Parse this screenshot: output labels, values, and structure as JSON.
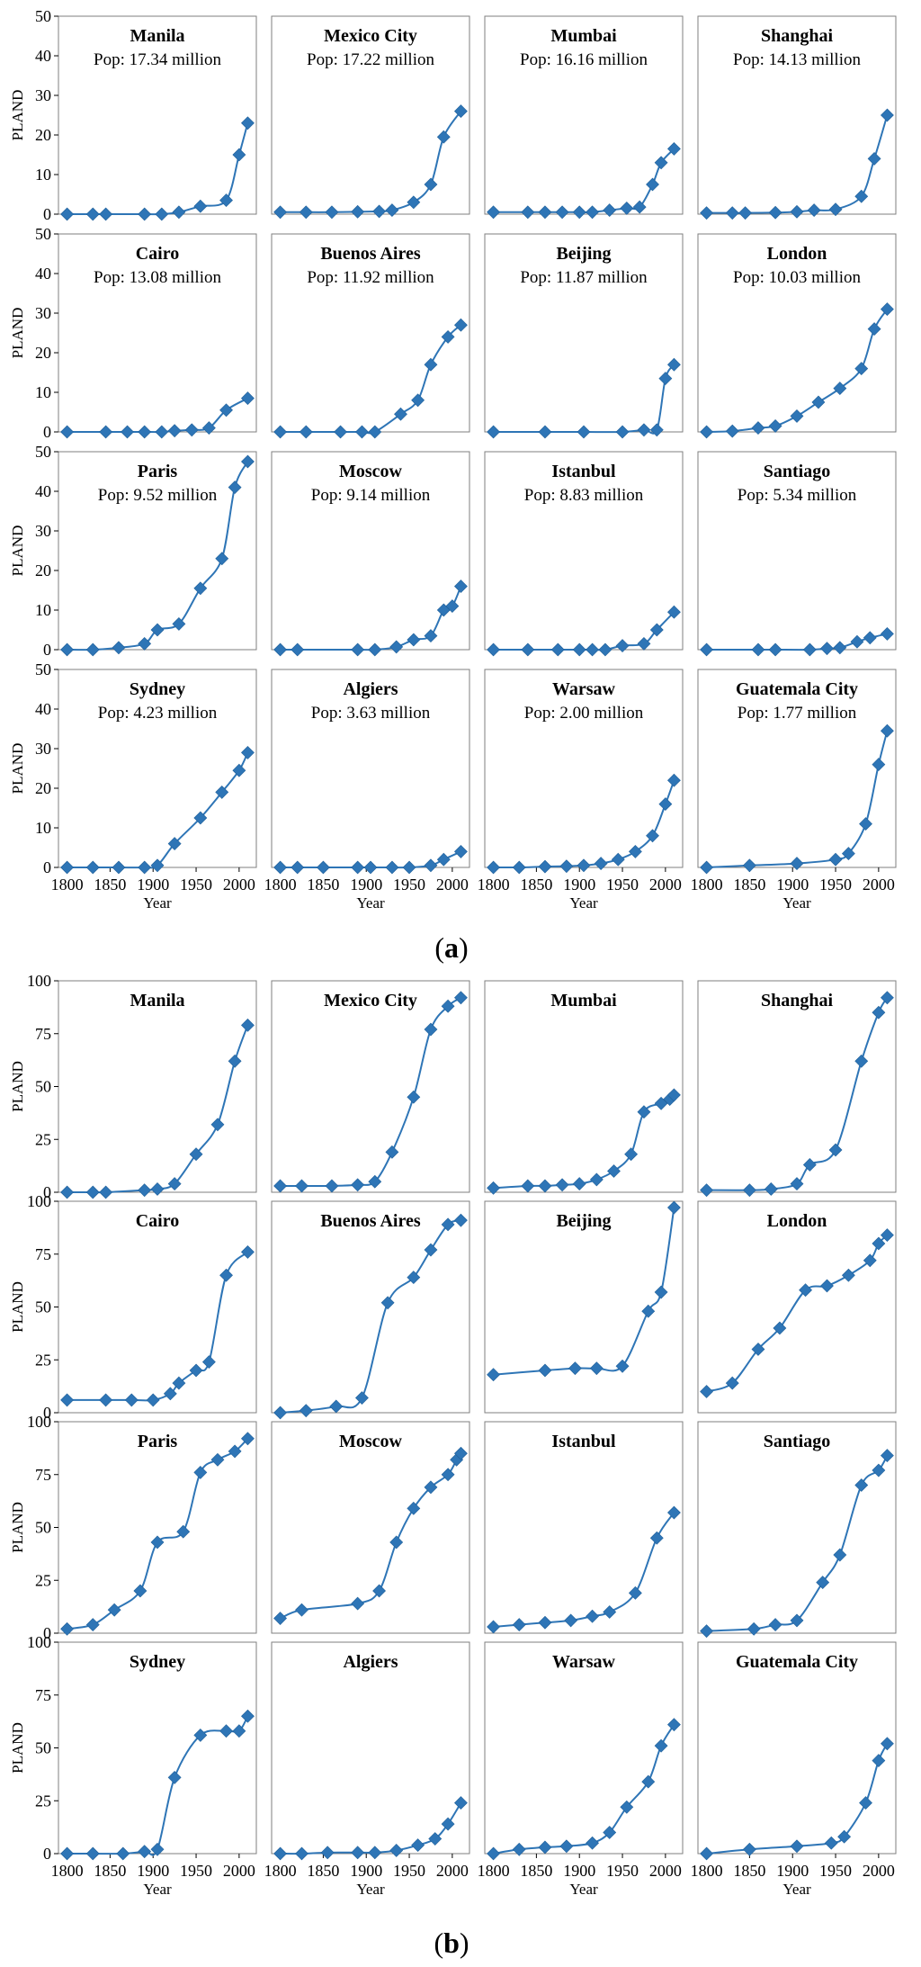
{
  "figure": {
    "xlabel": "Year",
    "ylabel": "PLAND",
    "x_ticks": [
      "1800",
      "1850",
      "1900",
      "1950",
      "2000"
    ],
    "marker_color": "#2E75B6",
    "line_color": "#2E75B6",
    "marker": "diamond"
  },
  "chart_data": [
    {
      "id": "a",
      "label": "a",
      "type": "line",
      "ylabel": "PLAND",
      "xlabel": "Year",
      "xlim": [
        1790,
        2020
      ],
      "ylim": [
        0,
        50
      ],
      "y_ticks": [
        0,
        10,
        20,
        30,
        40,
        50
      ],
      "x_ticks": [
        1800,
        1850,
        1900,
        1950,
        2000
      ],
      "grid": false,
      "panels": [
        {
          "city": "Manila",
          "pop": "Pop: 17.34 million",
          "x": [
            1800,
            1830,
            1845,
            1890,
            1910,
            1930,
            1955,
            1985,
            2000,
            2010
          ],
          "y": [
            0,
            0,
            0,
            0,
            0,
            0.5,
            2,
            3.5,
            15,
            23
          ]
        },
        {
          "city": "Mexico City",
          "pop": "Pop: 17.22 million",
          "x": [
            1800,
            1830,
            1860,
            1890,
            1915,
            1930,
            1955,
            1975,
            1990,
            2010
          ],
          "y": [
            0.5,
            0.5,
            0.5,
            0.6,
            0.7,
            1,
            3,
            7.5,
            19.5,
            26
          ]
        },
        {
          "city": "Mumbai",
          "pop": "Pop: 16.16 million",
          "x": [
            1800,
            1840,
            1860,
            1880,
            1900,
            1915,
            1935,
            1955,
            1970,
            1985,
            1995,
            2010
          ],
          "y": [
            0.5,
            0.5,
            0.5,
            0.5,
            0.5,
            0.5,
            1,
            1.5,
            1.8,
            7.5,
            13,
            16.5
          ]
        },
        {
          "city": "Shanghai",
          "pop": "Pop: 14.13 million",
          "x": [
            1800,
            1830,
            1845,
            1880,
            1905,
            1925,
            1950,
            1980,
            1995,
            2010
          ],
          "y": [
            0.3,
            0.3,
            0.3,
            0.4,
            0.6,
            1,
            1.2,
            4.5,
            14,
            25
          ]
        },
        {
          "city": "Cairo",
          "pop": "Pop: 13.08 million",
          "x": [
            1800,
            1845,
            1870,
            1890,
            1910,
            1925,
            1945,
            1965,
            1985,
            2010
          ],
          "y": [
            0,
            0,
            0,
            0,
            0,
            0.3,
            0.5,
            1,
            5.5,
            8.5
          ]
        },
        {
          "city": "Buenos Aires",
          "pop": "Pop: 11.92 million",
          "x": [
            1800,
            1830,
            1870,
            1895,
            1910,
            1940,
            1960,
            1975,
            1995,
            2010
          ],
          "y": [
            0,
            0,
            0,
            0,
            0,
            4.5,
            8,
            17,
            24,
            27
          ]
        },
        {
          "city": "Beijing",
          "pop": "Pop: 11.87 million",
          "x": [
            1800,
            1860,
            1905,
            1950,
            1975,
            1990,
            2000,
            2010
          ],
          "y": [
            0,
            0,
            0,
            0,
            0.5,
            0.5,
            13.5,
            17
          ]
        },
        {
          "city": "London",
          "pop": "Pop: 10.03 million",
          "x": [
            1800,
            1830,
            1860,
            1880,
            1905,
            1930,
            1955,
            1980,
            1995,
            2010
          ],
          "y": [
            0,
            0.2,
            1,
            1.5,
            4,
            7.5,
            11,
            16,
            26,
            31
          ]
        },
        {
          "city": "Paris",
          "pop": "Pop: 9.52 million",
          "x": [
            1800,
            1830,
            1860,
            1890,
            1905,
            1930,
            1955,
            1980,
            1995,
            2010
          ],
          "y": [
            0,
            0,
            0.5,
            1.5,
            5,
            6.5,
            15.5,
            23,
            41,
            47.5
          ]
        },
        {
          "city": "Moscow",
          "pop": "Pop: 9.14 million",
          "x": [
            1800,
            1820,
            1890,
            1910,
            1935,
            1955,
            1975,
            1990,
            2000,
            2010
          ],
          "y": [
            0,
            0,
            0,
            0,
            0.7,
            2.5,
            3.5,
            10,
            11,
            16
          ]
        },
        {
          "city": "Istanbul",
          "pop": "Pop: 8.83 million",
          "x": [
            1800,
            1840,
            1875,
            1900,
            1915,
            1930,
            1950,
            1975,
            1990,
            2010
          ],
          "y": [
            0,
            0,
            0,
            0,
            0,
            0,
            1,
            1.5,
            5,
            9.5
          ]
        },
        {
          "city": "Santiago",
          "pop": "Pop: 5.34 million",
          "x": [
            1800,
            1860,
            1880,
            1920,
            1940,
            1955,
            1975,
            1990,
            2010
          ],
          "y": [
            0,
            0,
            0,
            0,
            0.3,
            0.5,
            2,
            3,
            4
          ]
        },
        {
          "city": "Sydney",
          "pop": "Pop: 4.23 million",
          "x": [
            1800,
            1830,
            1860,
            1890,
            1905,
            1925,
            1955,
            1980,
            2000,
            2010
          ],
          "y": [
            0,
            0,
            0,
            0,
            0.5,
            6,
            12.5,
            19,
            24.5,
            29
          ]
        },
        {
          "city": "Algiers",
          "pop": "Pop: 3.63 million",
          "x": [
            1800,
            1820,
            1850,
            1890,
            1905,
            1930,
            1950,
            1975,
            1990,
            2010
          ],
          "y": [
            0,
            0,
            0,
            0,
            0,
            0,
            0,
            0.5,
            2,
            4
          ]
        },
        {
          "city": "Warsaw",
          "pop": "Pop: 2.00 million",
          "x": [
            1800,
            1830,
            1860,
            1885,
            1905,
            1925,
            1945,
            1965,
            1985,
            2000,
            2010
          ],
          "y": [
            0,
            0,
            0.2,
            0.3,
            0.5,
            1,
            2,
            4,
            8,
            16,
            22
          ]
        },
        {
          "city": "Guatemala City",
          "pop": "Pop: 1.77 million",
          "x": [
            1800,
            1850,
            1905,
            1950,
            1965,
            1985,
            2000,
            2010
          ],
          "y": [
            0,
            0.5,
            1,
            2,
            3.5,
            11,
            26,
            34.5
          ]
        }
      ]
    },
    {
      "id": "b",
      "label": "b",
      "type": "line",
      "ylabel": "PLAND",
      "xlabel": "Year",
      "xlim": [
        1790,
        2020
      ],
      "ylim": [
        0,
        100
      ],
      "y_ticks": [
        0,
        25,
        50,
        75,
        100
      ],
      "x_ticks": [
        1800,
        1850,
        1900,
        1950,
        2000
      ],
      "grid": false,
      "panels": [
        {
          "city": "Manila",
          "x": [
            1800,
            1830,
            1845,
            1890,
            1905,
            1925,
            1950,
            1975,
            1995,
            2010
          ],
          "y": [
            0,
            0,
            0,
            1,
            1.5,
            4,
            18,
            32,
            62,
            79
          ]
        },
        {
          "city": "Mexico City",
          "x": [
            1800,
            1825,
            1860,
            1890,
            1910,
            1930,
            1955,
            1975,
            1995,
            2010
          ],
          "y": [
            3,
            3,
            3,
            3.5,
            5,
            19,
            45,
            77,
            88,
            92
          ]
        },
        {
          "city": "Mumbai",
          "x": [
            1800,
            1840,
            1860,
            1880,
            1900,
            1920,
            1940,
            1960,
            1975,
            1995,
            2005,
            2010
          ],
          "y": [
            2,
            3,
            3,
            3.5,
            4,
            6,
            10,
            18,
            38,
            42,
            44,
            46
          ]
        },
        {
          "city": "Shanghai",
          "x": [
            1800,
            1850,
            1875,
            1905,
            1920,
            1950,
            1980,
            2000,
            2010
          ],
          "y": [
            1,
            1,
            1.5,
            4,
            13,
            20,
            62,
            85,
            92
          ]
        },
        {
          "city": "Cairo",
          "x": [
            1800,
            1845,
            1875,
            1900,
            1920,
            1930,
            1950,
            1965,
            1985,
            2010
          ],
          "y": [
            6,
            6,
            6,
            6,
            9,
            14,
            20,
            24,
            65,
            76
          ]
        },
        {
          "city": "Buenos Aires",
          "x": [
            1800,
            1830,
            1865,
            1895,
            1925,
            1955,
            1975,
            1995,
            2010
          ],
          "y": [
            0,
            1,
            3,
            7,
            52,
            64,
            77,
            89,
            91
          ]
        },
        {
          "city": "Beijing",
          "x": [
            1800,
            1860,
            1895,
            1920,
            1950,
            1980,
            1995,
            2010
          ],
          "y": [
            18,
            20,
            21,
            21,
            22,
            48,
            57,
            97
          ]
        },
        {
          "city": "London",
          "x": [
            1800,
            1830,
            1860,
            1885,
            1915,
            1940,
            1965,
            1990,
            2000,
            2010
          ],
          "y": [
            10,
            14,
            30,
            40,
            58,
            60,
            65,
            72,
            80,
            84
          ]
        },
        {
          "city": "Paris",
          "x": [
            1800,
            1830,
            1855,
            1885,
            1905,
            1935,
            1955,
            1975,
            1995,
            2010
          ],
          "y": [
            2,
            4,
            11,
            20,
            43,
            48,
            76,
            82,
            86,
            92
          ]
        },
        {
          "city": "Moscow",
          "x": [
            1800,
            1825,
            1890,
            1915,
            1935,
            1955,
            1975,
            1995,
            2005,
            2010
          ],
          "y": [
            7,
            11,
            14,
            20,
            43,
            59,
            69,
            75,
            82,
            85
          ]
        },
        {
          "city": "Istanbul",
          "x": [
            1800,
            1830,
            1860,
            1890,
            1915,
            1935,
            1965,
            1990,
            2010
          ],
          "y": [
            3,
            4,
            5,
            6,
            8,
            10,
            19,
            45,
            57
          ]
        },
        {
          "city": "Santiago",
          "x": [
            1800,
            1855,
            1880,
            1905,
            1935,
            1955,
            1980,
            2000,
            2010
          ],
          "y": [
            1,
            2,
            4,
            6,
            24,
            37,
            70,
            77,
            84
          ]
        },
        {
          "city": "Sydney",
          "x": [
            1800,
            1830,
            1865,
            1890,
            1905,
            1925,
            1955,
            1985,
            2000,
            2010
          ],
          "y": [
            0,
            0,
            0,
            1,
            2,
            36,
            56,
            58,
            58,
            65
          ]
        },
        {
          "city": "Algiers",
          "x": [
            1800,
            1825,
            1855,
            1890,
            1910,
            1935,
            1960,
            1980,
            1995,
            2010
          ],
          "y": [
            0,
            0,
            0.5,
            0.5,
            0.5,
            1.5,
            4,
            7,
            14,
            24
          ]
        },
        {
          "city": "Warsaw",
          "x": [
            1800,
            1830,
            1860,
            1885,
            1915,
            1935,
            1955,
            1980,
            1995,
            2010
          ],
          "y": [
            0,
            2,
            3,
            3.5,
            5,
            10,
            22,
            34,
            51,
            61
          ]
        },
        {
          "city": "Guatemala City",
          "x": [
            1800,
            1850,
            1905,
            1945,
            1960,
            1985,
            2000,
            2010
          ],
          "y": [
            0,
            2,
            3.5,
            5,
            8,
            24,
            44,
            52
          ]
        }
      ]
    }
  ]
}
